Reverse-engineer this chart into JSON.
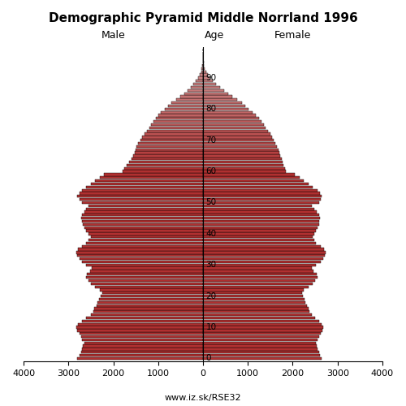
{
  "title": "Demographic Pyramid Middle Norrland 1996",
  "male_label": "Male",
  "female_label": "Female",
  "age_label": "Age",
  "footer": "www.iz.sk/RSE32",
  "xlim": 4000,
  "age_ticks": [
    0,
    10,
    20,
    30,
    40,
    50,
    60,
    70,
    80,
    90
  ],
  "color_young": "#b03030",
  "color_old": "#d4a0a0",
  "edge_color": "#000000",
  "male": [
    2800,
    2750,
    2720,
    2700,
    2680,
    2650,
    2700,
    2720,
    2750,
    2800,
    2820,
    2780,
    2700,
    2600,
    2500,
    2450,
    2420,
    2380,
    2350,
    2320,
    2280,
    2250,
    2300,
    2400,
    2500,
    2550,
    2600,
    2580,
    2520,
    2480,
    2600,
    2700,
    2750,
    2800,
    2820,
    2780,
    2700,
    2600,
    2550,
    2500,
    2550,
    2600,
    2650,
    2680,
    2700,
    2720,
    2700,
    2650,
    2600,
    2550,
    2700,
    2750,
    2800,
    2750,
    2700,
    2600,
    2500,
    2400,
    2300,
    2200,
    1800,
    1750,
    1700,
    1650,
    1600,
    1550,
    1520,
    1500,
    1480,
    1450,
    1400,
    1350,
    1300,
    1250,
    1200,
    1150,
    1100,
    1050,
    1000,
    950,
    850,
    780,
    700,
    600,
    500,
    420,
    350,
    280,
    220,
    160,
    110,
    70,
    45,
    28,
    16,
    9,
    5,
    2,
    1,
    0
  ],
  "female": [
    2650,
    2600,
    2580,
    2560,
    2540,
    2520,
    2560,
    2590,
    2620,
    2660,
    2680,
    2640,
    2580,
    2500,
    2420,
    2380,
    2350,
    2320,
    2290,
    2260,
    2220,
    2200,
    2250,
    2350,
    2450,
    2500,
    2550,
    2530,
    2470,
    2430,
    2520,
    2620,
    2680,
    2720,
    2730,
    2700,
    2620,
    2520,
    2480,
    2440,
    2480,
    2520,
    2560,
    2580,
    2590,
    2610,
    2590,
    2540,
    2480,
    2430,
    2580,
    2620,
    2650,
    2600,
    2550,
    2450,
    2350,
    2250,
    2150,
    2050,
    1850,
    1820,
    1800,
    1780,
    1750,
    1720,
    1700,
    1680,
    1650,
    1620,
    1580,
    1540,
    1500,
    1450,
    1400,
    1360,
    1310,
    1250,
    1180,
    1110,
    1020,
    940,
    860,
    760,
    650,
    560,
    470,
    380,
    290,
    210,
    150,
    100,
    68,
    44,
    26,
    14,
    7,
    3,
    1,
    0
  ]
}
